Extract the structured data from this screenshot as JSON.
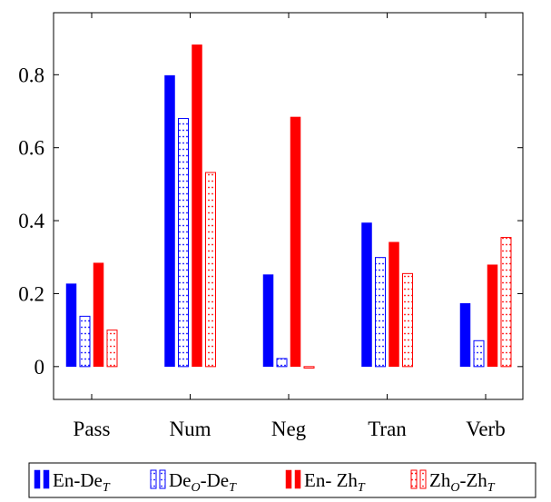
{
  "chart_data": {
    "type": "bar",
    "categories": [
      "Pass",
      "Num",
      "Neg",
      "Tran",
      "Verb"
    ],
    "series": [
      {
        "name": "En-De",
        "name_sub": "T",
        "color": "#0000ff",
        "pattern": "solid",
        "values": [
          0.227,
          0.798,
          0.252,
          0.394,
          0.173
        ]
      },
      {
        "name": "De",
        "name_sub": "O",
        "name_suffix": "-De",
        "name_suffix_sub": "T",
        "color": "#0000ff",
        "pattern": "dots",
        "values": [
          0.138,
          0.68,
          0.022,
          0.299,
          0.071
        ]
      },
      {
        "name": "En- Zh",
        "name_sub": "T",
        "color": "#ff0000",
        "pattern": "solid",
        "values": [
          0.284,
          0.882,
          0.684,
          0.341,
          0.279
        ]
      },
      {
        "name": "Zh",
        "name_sub": "O",
        "name_suffix": "-Zh",
        "name_suffix_sub": "T",
        "color": "#ff0000",
        "pattern": "dots",
        "values": [
          0.1,
          0.532,
          -0.004,
          0.255,
          0.354
        ]
      }
    ],
    "ylim": [
      -0.09,
      0.97
    ],
    "yticks": [
      0,
      0.2,
      0.4,
      0.6,
      0.8
    ],
    "ytick_labels": [
      "0",
      "0.2",
      "0.4",
      "0.6",
      "0.8"
    ],
    "grid": false,
    "legend_position": "bottom",
    "title": "",
    "xlabel": "",
    "ylabel": ""
  }
}
